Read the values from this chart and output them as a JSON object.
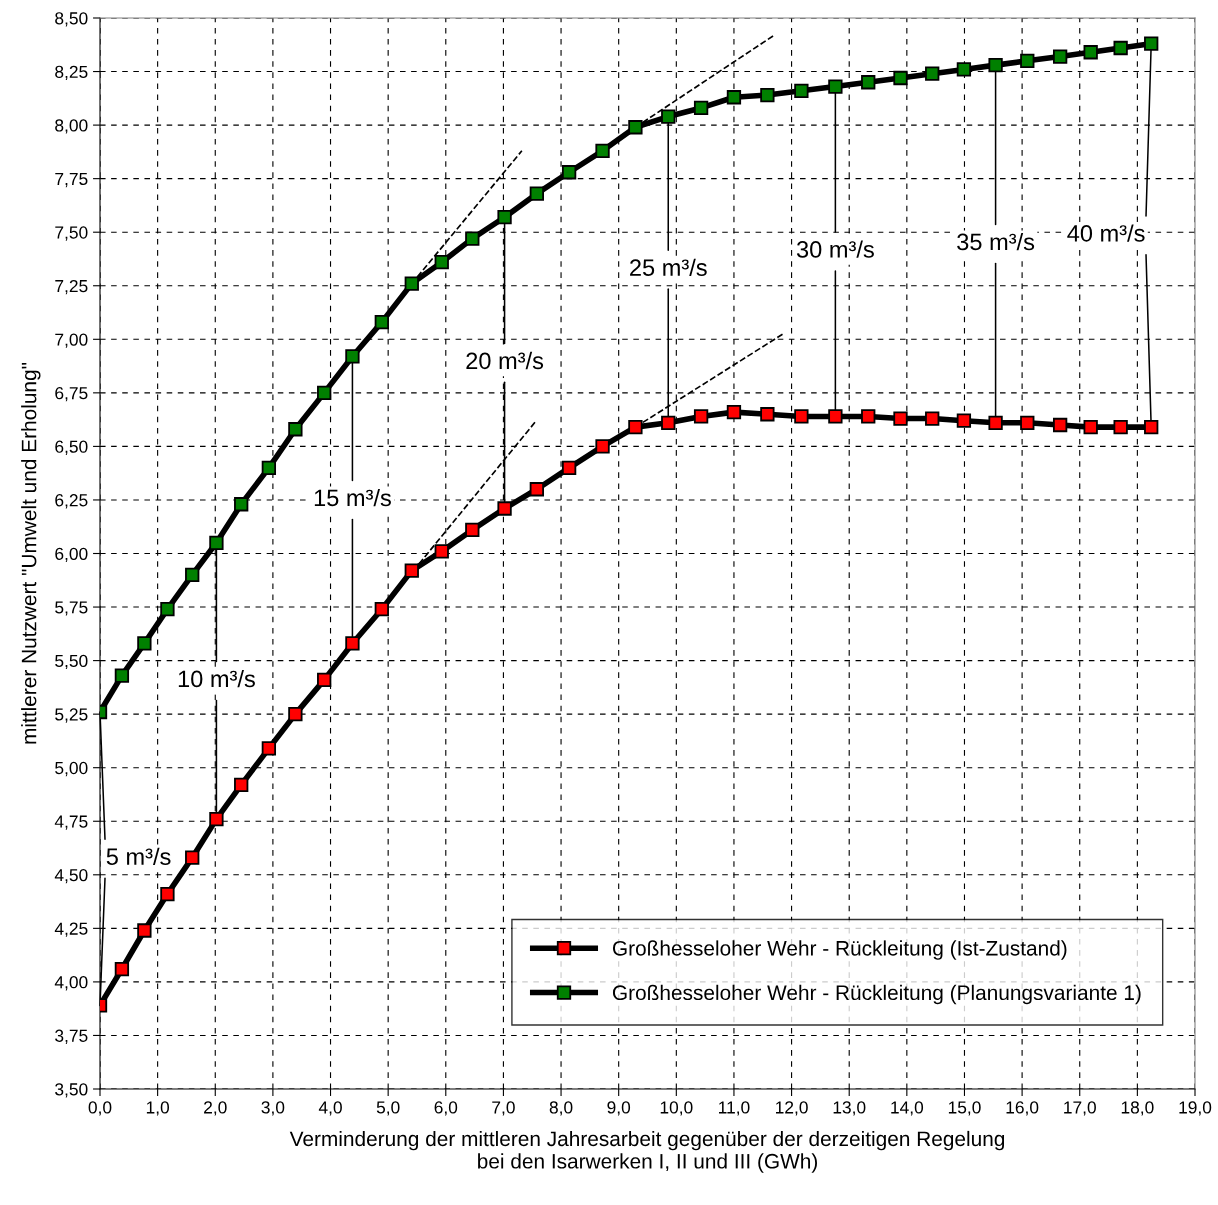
{
  "chart_data": {
    "type": "line",
    "xlabel": "Verminderung der mittleren Jahresarbeit gegenüber der derzeitigen Regelung\nbei den Isarwerken I, II und III (GWh)",
    "ylabel": "mittlerer Nutzwert \"Umwelt und Erholung\"",
    "x": [
      0,
      0.38,
      0.77,
      1.17,
      1.6,
      2.02,
      2.45,
      2.93,
      3.39,
      3.89,
      4.38,
      4.89,
      5.41,
      5.93,
      6.46,
      7.02,
      7.58,
      8.14,
      8.72,
      9.29,
      9.86,
      10.43,
      11.0,
      11.58,
      12.17,
      12.76,
      13.33,
      13.89,
      14.44,
      14.99,
      15.54,
      16.09,
      16.66,
      17.19,
      17.71,
      18.24
    ],
    "series": [
      {
        "name": "Großhesseloher Wehr - Rückleitung (Ist-Zustand)",
        "color": "#ff0000",
        "marker": "square",
        "line_style": "solid",
        "values": [
          3.89,
          4.06,
          4.24,
          4.41,
          4.58,
          4.76,
          4.92,
          5.09,
          5.25,
          5.41,
          5.58,
          5.74,
          5.92,
          6.01,
          6.11,
          6.21,
          6.3,
          6.4,
          6.5,
          6.59,
          6.61,
          6.64,
          6.66,
          6.65,
          6.64,
          6.64,
          6.64,
          6.63,
          6.63,
          6.62,
          6.61,
          6.61,
          6.6,
          6.59,
          6.59,
          6.59
        ]
      },
      {
        "name": "Großhesseloher Wehr - Rückleitung (Planungsvariante 1)",
        "color": "#008000",
        "marker": "square",
        "line_style": "solid",
        "values": [
          5.26,
          5.43,
          5.58,
          5.74,
          5.9,
          6.05,
          6.23,
          6.4,
          6.58,
          6.75,
          6.92,
          7.08,
          7.26,
          7.36,
          7.47,
          7.57,
          7.68,
          7.78,
          7.88,
          7.99,
          8.04,
          8.08,
          8.13,
          8.14,
          8.16,
          8.18,
          8.2,
          8.22,
          8.24,
          8.26,
          8.28,
          8.3,
          8.32,
          8.34,
          8.36,
          8.38
        ]
      },
      {
        "color": "#000000",
        "marker": "none",
        "line_style": "dashed",
        "x": [
          5.41,
          7.32
        ],
        "values": [
          7.26,
          7.88
        ]
      },
      {
        "color": "#000000",
        "marker": "none",
        "line_style": "dashed",
        "x": [
          9.29,
          11.7
        ],
        "values": [
          7.99,
          8.42
        ]
      },
      {
        "color": "#000000",
        "marker": "none",
        "line_style": "dashed",
        "x": [
          5.44,
          7.57
        ],
        "values": [
          5.92,
          6.62
        ]
      },
      {
        "color": "#000000",
        "marker": "none",
        "line_style": "dashed",
        "x": [
          9.29,
          11.88
        ],
        "values": [
          6.59,
          7.03
        ]
      }
    ],
    "annotations": [
      {
        "text": "5 m³/s",
        "x": 0,
        "y": 5.26
      },
      {
        "text": "10 m³/s",
        "x": 2.02,
        "y": 6.05
      },
      {
        "text": "15 m³/s",
        "x": 4.38,
        "y": 6.92
      },
      {
        "text": "20 m³/s",
        "x": 7.02,
        "y": 7.57
      },
      {
        "text": "25 m³/s",
        "x": 9.86,
        "y": 8.04
      },
      {
        "text": "30 m³/s",
        "x": 12.76,
        "y": 8.18
      },
      {
        "text": "35 m³/s",
        "x": 15.54,
        "y": 8.28
      },
      {
        "text": "40 m³/s",
        "x": 18.24,
        "y": 8.38
      }
    ],
    "xlim": [
      0,
      19
    ],
    "ylim": [
      3.5,
      8.5
    ],
    "xticks": [
      {
        "value": 0,
        "label": "0,0"
      },
      {
        "value": 1,
        "label": "1,0"
      },
      {
        "value": 2,
        "label": "2,0"
      },
      {
        "value": 3,
        "label": "3,0"
      },
      {
        "value": 4,
        "label": "4,0"
      },
      {
        "value": 5,
        "label": "5,0"
      },
      {
        "value": 6,
        "label": "6,0"
      },
      {
        "value": 7,
        "label": "7,0"
      },
      {
        "value": 8,
        "label": "8,0"
      },
      {
        "value": 9,
        "label": "9,0"
      },
      {
        "value": 10,
        "label": "10,0"
      },
      {
        "value": 11,
        "label": "11,0"
      },
      {
        "value": 12,
        "label": "12,0"
      },
      {
        "value": 13,
        "label": "13,0"
      },
      {
        "value": 14,
        "label": "14,0"
      },
      {
        "value": 15,
        "label": "15,0"
      },
      {
        "value": 16,
        "label": "16,0"
      },
      {
        "value": 17,
        "label": "17,0"
      },
      {
        "value": 18,
        "label": "18,0"
      },
      {
        "value": 19,
        "label": "19,0"
      }
    ],
    "yticks": [
      {
        "value": 3.5,
        "label": "3,50"
      },
      {
        "value": 3.75,
        "label": "3,75"
      },
      {
        "value": 4.0,
        "label": "4,00"
      },
      {
        "value": 4.25,
        "label": "4,25"
      },
      {
        "value": 4.5,
        "label": "4,50"
      },
      {
        "value": 4.75,
        "label": "4,75"
      },
      {
        "value": 5.0,
        "label": "5,00"
      },
      {
        "value": 5.25,
        "label": "5,25"
      },
      {
        "value": 5.5,
        "label": "5,50"
      },
      {
        "value": 5.75,
        "label": "5,75"
      },
      {
        "value": 6.0,
        "label": "6,00"
      },
      {
        "value": 6.25,
        "label": "6,25"
      },
      {
        "value": 6.5,
        "label": "6,50"
      },
      {
        "value": 6.75,
        "label": "6,75"
      },
      {
        "value": 7.0,
        "label": "7,00"
      },
      {
        "value": 7.25,
        "label": "7,25"
      },
      {
        "value": 7.5,
        "label": "7,50"
      },
      {
        "value": 7.75,
        "label": "7,75"
      },
      {
        "value": 8.0,
        "label": "8,00"
      },
      {
        "value": 8.25,
        "label": "8,25"
      },
      {
        "value": 8.5,
        "label": "8,50"
      }
    ],
    "grid": true,
    "legend": "lower right"
  }
}
